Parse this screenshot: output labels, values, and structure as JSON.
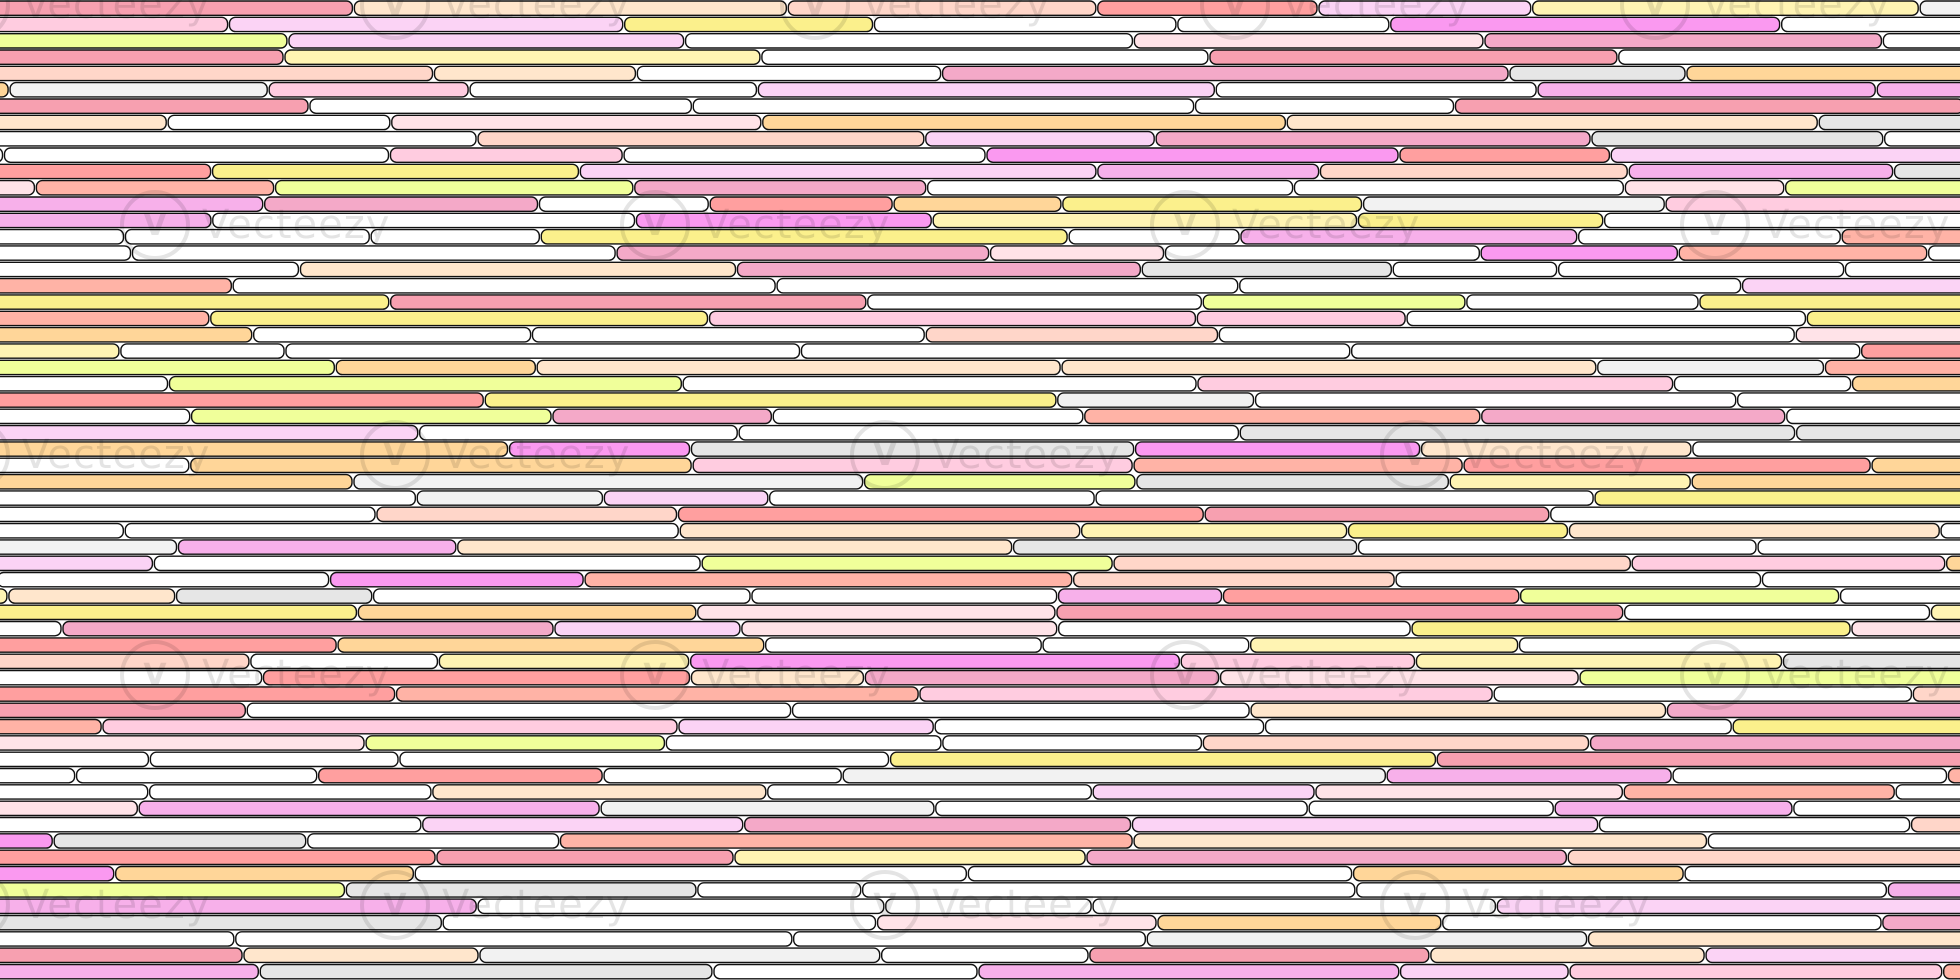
{
  "watermark": {
    "text": "Vecteezy",
    "icon_glyph": "V",
    "icon": "vecteezy-logo-icon"
  },
  "palette": [
    "#ffffff",
    "#f2f2f2",
    "#e6e6e6",
    "#ffd6c9",
    "#ffe6cc",
    "#fff4b3",
    "#fbf08c",
    "#ffd699",
    "#ffb3a6",
    "#f7a0b0",
    "#ffcce0",
    "#fbd3f5",
    "#f7b0ea",
    "#f4a9c8",
    "#f0ff9a",
    "#ffe3e8",
    "#ff9f9f",
    "#fa99f0"
  ]
}
